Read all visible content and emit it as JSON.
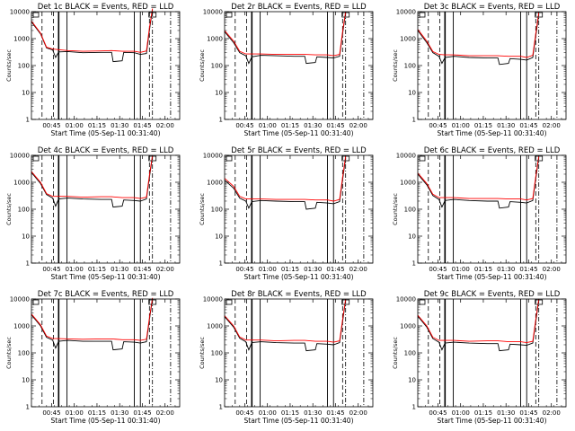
{
  "chart_data": {
    "type": "line",
    "layout": {
      "rows": 3,
      "cols": 3
    },
    "ylabel": "Counts/sec",
    "xlabel": "Start Time (05-Sep-11 00:31:40)",
    "yscale": "log",
    "ylim": [
      1,
      10000
    ],
    "xlim_minutes_after_start": [
      0,
      98
    ],
    "ytick_labels": [
      "1",
      "10",
      "100",
      "1000",
      "10000"
    ],
    "xtick_labels": [
      "00:45",
      "01:00",
      "01:15",
      "01:30",
      "01:45",
      "02:00"
    ],
    "xtick_minutes_after_start": [
      13.33,
      28.33,
      43.33,
      58.33,
      73.33,
      88.33
    ],
    "colors": {
      "events": "#000000",
      "lld": "#ff0000"
    },
    "marker_lines_minutes_after_start": {
      "dashed": [
        7,
        14.5,
        78
      ],
      "solid": [
        18,
        23.5,
        68,
        72
      ],
      "dash_dot": [
        80,
        92
      ]
    },
    "panels": [
      {
        "title": "Det 1c BLACK = Events, RED = LLD",
        "events": [
          [
            0,
            4200
          ],
          [
            6,
            1500
          ],
          [
            10,
            450
          ],
          [
            14,
            380
          ],
          [
            16,
            200
          ],
          [
            18,
            320
          ],
          [
            24,
            330
          ],
          [
            34,
            300
          ],
          [
            46,
            310
          ],
          [
            53,
            310
          ],
          [
            54,
            140
          ],
          [
            60,
            150
          ],
          [
            61,
            310
          ],
          [
            68,
            300
          ],
          [
            72,
            260
          ],
          [
            76,
            280
          ],
          [
            78,
            2000
          ],
          [
            80,
            12000
          ]
        ],
        "lld": [
          [
            0,
            4500
          ],
          [
            6,
            1600
          ],
          [
            10,
            480
          ],
          [
            14,
            410
          ],
          [
            18,
            390
          ],
          [
            24,
            360
          ],
          [
            34,
            340
          ],
          [
            46,
            350
          ],
          [
            53,
            360
          ],
          [
            60,
            340
          ],
          [
            68,
            340
          ],
          [
            72,
            310
          ],
          [
            76,
            350
          ],
          [
            78,
            2500
          ],
          [
            80,
            13000
          ]
        ]
      },
      {
        "title": "Det 2r BLACK = Events, RED = LLD",
        "events": [
          [
            0,
            1800
          ],
          [
            6,
            700
          ],
          [
            10,
            300
          ],
          [
            14,
            230
          ],
          [
            16,
            120
          ],
          [
            18,
            210
          ],
          [
            24,
            240
          ],
          [
            34,
            230
          ],
          [
            46,
            220
          ],
          [
            53,
            220
          ],
          [
            54,
            120
          ],
          [
            60,
            130
          ],
          [
            61,
            210
          ],
          [
            68,
            200
          ],
          [
            72,
            190
          ],
          [
            76,
            220
          ],
          [
            78,
            1500
          ],
          [
            80,
            9000
          ]
        ],
        "lld": [
          [
            0,
            2000
          ],
          [
            6,
            800
          ],
          [
            10,
            340
          ],
          [
            14,
            270
          ],
          [
            18,
            270
          ],
          [
            24,
            270
          ],
          [
            34,
            260
          ],
          [
            46,
            260
          ],
          [
            53,
            260
          ],
          [
            60,
            250
          ],
          [
            68,
            250
          ],
          [
            72,
            230
          ],
          [
            76,
            260
          ],
          [
            78,
            1800
          ],
          [
            80,
            10000
          ]
        ]
      },
      {
        "title": "Det 3c BLACK = Events, RED = LLD",
        "events": [
          [
            0,
            2000
          ],
          [
            6,
            700
          ],
          [
            10,
            300
          ],
          [
            14,
            220
          ],
          [
            16,
            120
          ],
          [
            18,
            200
          ],
          [
            24,
            220
          ],
          [
            34,
            200
          ],
          [
            46,
            190
          ],
          [
            53,
            190
          ],
          [
            54,
            110
          ],
          [
            60,
            120
          ],
          [
            61,
            180
          ],
          [
            68,
            170
          ],
          [
            72,
            160
          ],
          [
            76,
            200
          ],
          [
            78,
            1200
          ],
          [
            80,
            8000
          ]
        ],
        "lld": [
          [
            0,
            2200
          ],
          [
            6,
            800
          ],
          [
            10,
            330
          ],
          [
            14,
            260
          ],
          [
            18,
            250
          ],
          [
            24,
            250
          ],
          [
            34,
            230
          ],
          [
            46,
            230
          ],
          [
            53,
            230
          ],
          [
            60,
            220
          ],
          [
            68,
            220
          ],
          [
            72,
            200
          ],
          [
            76,
            240
          ],
          [
            78,
            1500
          ],
          [
            80,
            9500
          ]
        ]
      },
      {
        "title": "Det 4c BLACK = Events, RED = LLD",
        "events": [
          [
            0,
            2300
          ],
          [
            6,
            900
          ],
          [
            10,
            350
          ],
          [
            14,
            260
          ],
          [
            16,
            130
          ],
          [
            18,
            240
          ],
          [
            24,
            260
          ],
          [
            34,
            240
          ],
          [
            46,
            230
          ],
          [
            53,
            230
          ],
          [
            54,
            120
          ],
          [
            60,
            130
          ],
          [
            61,
            220
          ],
          [
            68,
            210
          ],
          [
            72,
            200
          ],
          [
            76,
            240
          ],
          [
            78,
            1500
          ],
          [
            80,
            9000
          ]
        ],
        "lld": [
          [
            0,
            2500
          ],
          [
            6,
            1000
          ],
          [
            10,
            380
          ],
          [
            14,
            300
          ],
          [
            18,
            300
          ],
          [
            24,
            300
          ],
          [
            34,
            280
          ],
          [
            46,
            290
          ],
          [
            53,
            290
          ],
          [
            60,
            270
          ],
          [
            68,
            270
          ],
          [
            72,
            250
          ],
          [
            76,
            280
          ],
          [
            78,
            1800
          ],
          [
            80,
            10000
          ]
        ]
      },
      {
        "title": "Det 5r BLACK = Events, RED = LLD",
        "events": [
          [
            0,
            1200
          ],
          [
            6,
            600
          ],
          [
            10,
            260
          ],
          [
            14,
            200
          ],
          [
            16,
            110
          ],
          [
            18,
            190
          ],
          [
            24,
            210
          ],
          [
            34,
            200
          ],
          [
            46,
            190
          ],
          [
            53,
            190
          ],
          [
            54,
            100
          ],
          [
            60,
            110
          ],
          [
            61,
            180
          ],
          [
            68,
            170
          ],
          [
            72,
            160
          ],
          [
            76,
            190
          ],
          [
            78,
            1200
          ],
          [
            80,
            8000
          ]
        ],
        "lld": [
          [
            0,
            1400
          ],
          [
            6,
            700
          ],
          [
            10,
            300
          ],
          [
            14,
            240
          ],
          [
            18,
            240
          ],
          [
            24,
            240
          ],
          [
            34,
            230
          ],
          [
            46,
            230
          ],
          [
            53,
            230
          ],
          [
            60,
            220
          ],
          [
            68,
            220
          ],
          [
            72,
            200
          ],
          [
            76,
            230
          ],
          [
            78,
            1500
          ],
          [
            80,
            9500
          ]
        ]
      },
      {
        "title": "Det 6c BLACK = Events, RED = LLD",
        "events": [
          [
            0,
            2000
          ],
          [
            6,
            800
          ],
          [
            10,
            320
          ],
          [
            14,
            230
          ],
          [
            16,
            120
          ],
          [
            18,
            210
          ],
          [
            24,
            230
          ],
          [
            34,
            210
          ],
          [
            46,
            200
          ],
          [
            53,
            200
          ],
          [
            54,
            110
          ],
          [
            60,
            120
          ],
          [
            61,
            190
          ],
          [
            68,
            180
          ],
          [
            72,
            170
          ],
          [
            76,
            210
          ],
          [
            78,
            1300
          ],
          [
            80,
            8500
          ]
        ],
        "lld": [
          [
            0,
            2200
          ],
          [
            6,
            900
          ],
          [
            10,
            360
          ],
          [
            14,
            270
          ],
          [
            18,
            270
          ],
          [
            24,
            270
          ],
          [
            34,
            250
          ],
          [
            46,
            250
          ],
          [
            53,
            250
          ],
          [
            60,
            240
          ],
          [
            68,
            240
          ],
          [
            72,
            220
          ],
          [
            76,
            250
          ],
          [
            78,
            1600
          ],
          [
            80,
            9500
          ]
        ]
      },
      {
        "title": "Det 7c BLACK = Events, RED = LLD",
        "events": [
          [
            0,
            2600
          ],
          [
            6,
            1000
          ],
          [
            10,
            380
          ],
          [
            14,
            300
          ],
          [
            16,
            150
          ],
          [
            18,
            270
          ],
          [
            24,
            290
          ],
          [
            34,
            270
          ],
          [
            46,
            270
          ],
          [
            53,
            270
          ],
          [
            54,
            130
          ],
          [
            60,
            140
          ],
          [
            61,
            260
          ],
          [
            68,
            250
          ],
          [
            72,
            230
          ],
          [
            76,
            260
          ],
          [
            78,
            1700
          ],
          [
            80,
            10000
          ]
        ],
        "lld": [
          [
            0,
            2800
          ],
          [
            6,
            1100
          ],
          [
            10,
            420
          ],
          [
            14,
            340
          ],
          [
            18,
            340
          ],
          [
            24,
            330
          ],
          [
            34,
            320
          ],
          [
            46,
            330
          ],
          [
            53,
            330
          ],
          [
            60,
            310
          ],
          [
            68,
            310
          ],
          [
            72,
            290
          ],
          [
            76,
            320
          ],
          [
            78,
            2000
          ],
          [
            80,
            11000
          ]
        ]
      },
      {
        "title": "Det 8r BLACK = Events, RED = LLD",
        "events": [
          [
            0,
            2200
          ],
          [
            6,
            900
          ],
          [
            10,
            350
          ],
          [
            14,
            260
          ],
          [
            16,
            130
          ],
          [
            18,
            240
          ],
          [
            24,
            260
          ],
          [
            34,
            240
          ],
          [
            46,
            230
          ],
          [
            53,
            230
          ],
          [
            54,
            120
          ],
          [
            60,
            130
          ],
          [
            61,
            220
          ],
          [
            68,
            210
          ],
          [
            72,
            200
          ],
          [
            76,
            240
          ],
          [
            78,
            1400
          ],
          [
            80,
            9000
          ]
        ],
        "lld": [
          [
            0,
            2400
          ],
          [
            6,
            1000
          ],
          [
            10,
            390
          ],
          [
            14,
            300
          ],
          [
            18,
            300
          ],
          [
            24,
            300
          ],
          [
            34,
            280
          ],
          [
            46,
            290
          ],
          [
            53,
            290
          ],
          [
            60,
            270
          ],
          [
            68,
            270
          ],
          [
            72,
            250
          ],
          [
            76,
            280
          ],
          [
            78,
            1700
          ],
          [
            80,
            10000
          ]
        ]
      },
      {
        "title": "Det 9c BLACK = Events, RED = LLD",
        "events": [
          [
            0,
            2300
          ],
          [
            6,
            900
          ],
          [
            10,
            340
          ],
          [
            14,
            250
          ],
          [
            16,
            130
          ],
          [
            18,
            230
          ],
          [
            24,
            250
          ],
          [
            34,
            230
          ],
          [
            46,
            220
          ],
          [
            53,
            220
          ],
          [
            54,
            120
          ],
          [
            60,
            130
          ],
          [
            61,
            210
          ],
          [
            68,
            200
          ],
          [
            72,
            190
          ],
          [
            76,
            230
          ],
          [
            78,
            1400
          ],
          [
            80,
            9000
          ]
        ],
        "lld": [
          [
            0,
            2500
          ],
          [
            6,
            1000
          ],
          [
            10,
            380
          ],
          [
            14,
            290
          ],
          [
            18,
            290
          ],
          [
            24,
            290
          ],
          [
            34,
            270
          ],
          [
            46,
            280
          ],
          [
            53,
            280
          ],
          [
            60,
            260
          ],
          [
            68,
            260
          ],
          [
            72,
            240
          ],
          [
            76,
            270
          ],
          [
            78,
            1700
          ],
          [
            80,
            10000
          ]
        ]
      }
    ]
  }
}
